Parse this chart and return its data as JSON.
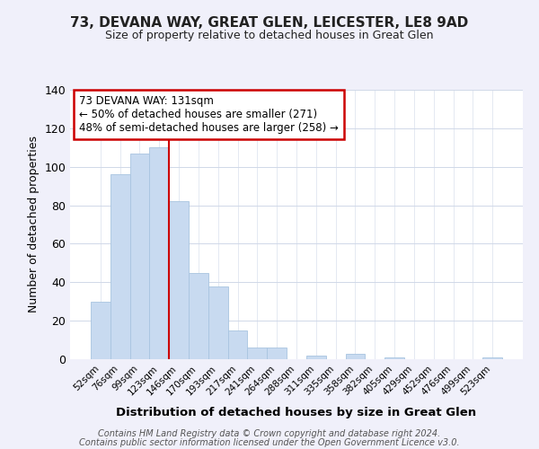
{
  "title": "73, DEVANA WAY, GREAT GLEN, LEICESTER, LE8 9AD",
  "subtitle": "Size of property relative to detached houses in Great Glen",
  "xlabel": "Distribution of detached houses by size in Great Glen",
  "ylabel": "Number of detached properties",
  "bar_color": "#c8daf0",
  "bar_edge_color": "#a8c4e0",
  "categories": [
    "52sqm",
    "76sqm",
    "99sqm",
    "123sqm",
    "146sqm",
    "170sqm",
    "193sqm",
    "217sqm",
    "241sqm",
    "264sqm",
    "288sqm",
    "311sqm",
    "335sqm",
    "358sqm",
    "382sqm",
    "405sqm",
    "429sqm",
    "452sqm",
    "476sqm",
    "499sqm",
    "523sqm"
  ],
  "values": [
    30,
    96,
    107,
    110,
    82,
    45,
    38,
    15,
    6,
    6,
    0,
    2,
    0,
    3,
    0,
    1,
    0,
    0,
    0,
    0,
    1
  ],
  "ylim": [
    0,
    140
  ],
  "yticks": [
    0,
    20,
    40,
    60,
    80,
    100,
    120,
    140
  ],
  "vline_x": 3.5,
  "vline_color": "#cc0000",
  "annotation_line1": "73 DEVANA WAY: 131sqm",
  "annotation_line2": "← 50% of detached houses are smaller (271)",
  "annotation_line3": "48% of semi-detached houses are larger (258) →",
  "annotation_box_color": "#ffffff",
  "annotation_box_edge": "#cc0000",
  "footer_line1": "Contains HM Land Registry data © Crown copyright and database right 2024.",
  "footer_line2": "Contains public sector information licensed under the Open Government Licence v3.0.",
  "background_color": "#f0f0fa",
  "plot_background": "#ffffff",
  "grid_color": "#d0d8e8"
}
